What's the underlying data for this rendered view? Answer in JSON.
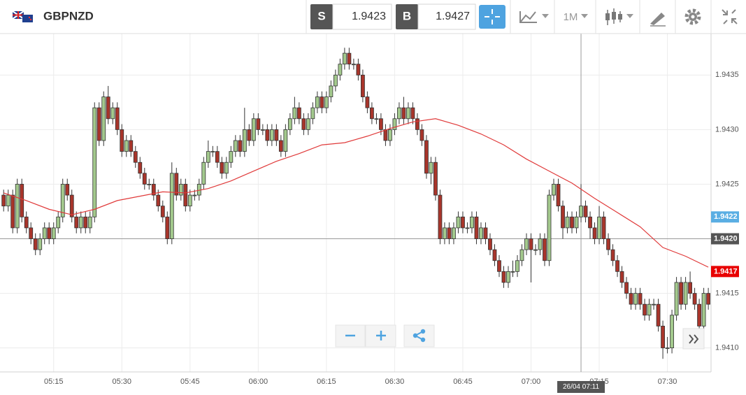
{
  "header": {
    "symbol": "GBPNZD",
    "sell_label": "S",
    "sell": "1.9423",
    "buy_label": "B",
    "buy": "1.9427",
    "timeframe": "1M"
  },
  "chart_data": {
    "type": "candlestick",
    "x": [
      304,
      305,
      306,
      307,
      308,
      309,
      310,
      311,
      312,
      313,
      314,
      315,
      316,
      317,
      318,
      319,
      320,
      321,
      322,
      323,
      324,
      325,
      326,
      327,
      328,
      329,
      330,
      331,
      332,
      333,
      334,
      335,
      336,
      337,
      338,
      339,
      340,
      341,
      342,
      343,
      344,
      345,
      346,
      347,
      348,
      349,
      350,
      351,
      352,
      353,
      354,
      355,
      356,
      357,
      358,
      359,
      360,
      361,
      362,
      363,
      364,
      365,
      366,
      367,
      368,
      369,
      370,
      371,
      372,
      373,
      374,
      375,
      376,
      377,
      378,
      379,
      380,
      381,
      382,
      383,
      384,
      385,
      386,
      387,
      388,
      389,
      390,
      391,
      392,
      393,
      394,
      395,
      396,
      397,
      398,
      399,
      400,
      401,
      402,
      403,
      404,
      405,
      406,
      407,
      408,
      409,
      410,
      411,
      412,
      413,
      414,
      415,
      416,
      417,
      418,
      419,
      420,
      421,
      422,
      423,
      424,
      425,
      426,
      427,
      428,
      429,
      430,
      431,
      432,
      433,
      434,
      435,
      436,
      437,
      438,
      439,
      440,
      441,
      442,
      443,
      444,
      445,
      446,
      447,
      448,
      449,
      450,
      451,
      452,
      453,
      454,
      455,
      456,
      457,
      458,
      459
    ],
    "ohlc": [
      [
        1.9424,
        1.94245,
        1.94225,
        1.9423
      ],
      [
        1.9423,
        1.94245,
        1.94225,
        1.9424
      ],
      [
        1.9424,
        1.94245,
        1.94205,
        1.9421
      ],
      [
        1.9421,
        1.94255,
        1.94205,
        1.9425
      ],
      [
        1.9425,
        1.94255,
        1.94215,
        1.9422
      ],
      [
        1.9422,
        1.94225,
        1.94205,
        1.9421
      ],
      [
        1.9421,
        1.94215,
        1.94195,
        1.942
      ],
      [
        1.942,
        1.94205,
        1.94185,
        1.9419
      ],
      [
        1.9419,
        1.94205,
        1.94185,
        1.942
      ],
      [
        1.942,
        1.94215,
        1.94195,
        1.9421
      ],
      [
        1.9421,
        1.94215,
        1.94195,
        1.942
      ],
      [
        1.942,
        1.94215,
        1.94195,
        1.9421
      ],
      [
        1.9421,
        1.94225,
        1.94205,
        1.9422
      ],
      [
        1.9422,
        1.94255,
        1.94215,
        1.9425
      ],
      [
        1.9425,
        1.94255,
        1.94235,
        1.9424
      ],
      [
        1.9424,
        1.94245,
        1.94215,
        1.9422
      ],
      [
        1.9422,
        1.94225,
        1.94205,
        1.9421
      ],
      [
        1.9421,
        1.94225,
        1.94205,
        1.9422
      ],
      [
        1.9422,
        1.94225,
        1.94205,
        1.9421
      ],
      [
        1.9421,
        1.94225,
        1.94205,
        1.9422
      ],
      [
        1.9422,
        1.94325,
        1.94215,
        1.9432
      ],
      [
        1.9432,
        1.94325,
        1.94285,
        1.9429
      ],
      [
        1.9429,
        1.94335,
        1.94285,
        1.9433
      ],
      [
        1.9433,
        1.9434,
        1.94305,
        1.9431
      ],
      [
        1.9431,
        1.94325,
        1.94305,
        1.9432
      ],
      [
        1.9432,
        1.94325,
        1.94295,
        1.943
      ],
      [
        1.943,
        1.94305,
        1.94275,
        1.9428
      ],
      [
        1.9428,
        1.94295,
        1.94275,
        1.9429
      ],
      [
        1.9429,
        1.94295,
        1.94275,
        1.9428
      ],
      [
        1.9428,
        1.94285,
        1.94265,
        1.9427
      ],
      [
        1.9427,
        1.94275,
        1.94255,
        1.9426
      ],
      [
        1.9426,
        1.94265,
        1.94245,
        1.9425
      ],
      [
        1.9425,
        1.94255,
        1.94245,
        1.9425
      ],
      [
        1.9425,
        1.94255,
        1.94235,
        1.9424
      ],
      [
        1.9424,
        1.94245,
        1.94225,
        1.9423
      ],
      [
        1.9423,
        1.94235,
        1.94215,
        1.9422
      ],
      [
        1.9422,
        1.94225,
        1.94195,
        1.942
      ],
      [
        1.942,
        1.9427,
        1.94195,
        1.9426
      ],
      [
        1.9426,
        1.94265,
        1.94235,
        1.9424
      ],
      [
        1.9424,
        1.94255,
        1.94235,
        1.9425
      ],
      [
        1.9425,
        1.94255,
        1.94225,
        1.9423
      ],
      [
        1.9423,
        1.94245,
        1.94225,
        1.9424
      ],
      [
        1.9424,
        1.94245,
        1.94235,
        1.9424
      ],
      [
        1.9424,
        1.94255,
        1.94235,
        1.9425
      ],
      [
        1.9425,
        1.94275,
        1.94245,
        1.9427
      ],
      [
        1.9427,
        1.9429,
        1.94265,
        1.9428
      ],
      [
        1.9428,
        1.94285,
        1.94275,
        1.9428
      ],
      [
        1.9428,
        1.94285,
        1.94265,
        1.9427
      ],
      [
        1.9427,
        1.94275,
        1.94255,
        1.9426
      ],
      [
        1.9426,
        1.94275,
        1.94255,
        1.9427
      ],
      [
        1.9427,
        1.94285,
        1.94265,
        1.9428
      ],
      [
        1.9428,
        1.94295,
        1.94275,
        1.9429
      ],
      [
        1.9429,
        1.94295,
        1.94275,
        1.9428
      ],
      [
        1.9428,
        1.9432,
        1.94275,
        1.943
      ],
      [
        1.943,
        1.94305,
        1.94285,
        1.9429
      ],
      [
        1.9429,
        1.94315,
        1.94285,
        1.9431
      ],
      [
        1.9431,
        1.94315,
        1.94295,
        1.943
      ],
      [
        1.943,
        1.94305,
        1.94295,
        1.943
      ],
      [
        1.943,
        1.94305,
        1.94285,
        1.9429
      ],
      [
        1.9429,
        1.94305,
        1.94285,
        1.943
      ],
      [
        1.943,
        1.94305,
        1.94285,
        1.9429
      ],
      [
        1.9429,
        1.94295,
        1.94275,
        1.9428
      ],
      [
        1.9428,
        1.94305,
        1.94275,
        1.943
      ],
      [
        1.943,
        1.94315,
        1.94295,
        1.9431
      ],
      [
        1.9431,
        1.9433,
        1.94305,
        1.9432
      ],
      [
        1.9432,
        1.94325,
        1.94305,
        1.9431
      ],
      [
        1.9431,
        1.94315,
        1.94295,
        1.943
      ],
      [
        1.943,
        1.94315,
        1.94295,
        1.9431
      ],
      [
        1.9431,
        1.94325,
        1.94305,
        1.9432
      ],
      [
        1.9432,
        1.94335,
        1.94315,
        1.9433
      ],
      [
        1.9433,
        1.94335,
        1.94315,
        1.9432
      ],
      [
        1.9432,
        1.94335,
        1.94315,
        1.9433
      ],
      [
        1.9433,
        1.94345,
        1.94325,
        1.9434
      ],
      [
        1.9434,
        1.94355,
        1.94335,
        1.9435
      ],
      [
        1.9435,
        1.94365,
        1.94345,
        1.9436
      ],
      [
        1.9436,
        1.94375,
        1.94355,
        1.9437
      ],
      [
        1.9437,
        1.94375,
        1.94355,
        1.9436
      ],
      [
        1.9436,
        1.94365,
        1.94355,
        1.9436
      ],
      [
        1.9436,
        1.94365,
        1.94345,
        1.9435
      ],
      [
        1.9435,
        1.94355,
        1.94325,
        1.9433
      ],
      [
        1.9433,
        1.94335,
        1.94315,
        1.9432
      ],
      [
        1.9432,
        1.94325,
        1.94305,
        1.9431
      ],
      [
        1.9431,
        1.94315,
        1.94305,
        1.9431
      ],
      [
        1.9431,
        1.94315,
        1.94295,
        1.943
      ],
      [
        1.943,
        1.94305,
        1.94285,
        1.9429
      ],
      [
        1.9429,
        1.94305,
        1.94285,
        1.943
      ],
      [
        1.943,
        1.94315,
        1.94295,
        1.9431
      ],
      [
        1.9431,
        1.94325,
        1.94305,
        1.9432
      ],
      [
        1.9432,
        1.9433,
        1.94305,
        1.9431
      ],
      [
        1.9431,
        1.94325,
        1.94305,
        1.9432
      ],
      [
        1.9432,
        1.94325,
        1.94305,
        1.9431
      ],
      [
        1.9431,
        1.94315,
        1.94295,
        1.943
      ],
      [
        1.943,
        1.94305,
        1.94285,
        1.9429
      ],
      [
        1.9429,
        1.94295,
        1.94255,
        1.9426
      ],
      [
        1.9426,
        1.94275,
        1.9425,
        1.9427
      ],
      [
        1.9427,
        1.94275,
        1.94235,
        1.9424
      ],
      [
        1.9424,
        1.94245,
        1.94195,
        1.942
      ],
      [
        1.942,
        1.94215,
        1.94195,
        1.9421
      ],
      [
        1.9421,
        1.94215,
        1.94195,
        1.942
      ],
      [
        1.942,
        1.94215,
        1.94195,
        1.9421
      ],
      [
        1.9421,
        1.94225,
        1.94205,
        1.9422
      ],
      [
        1.9422,
        1.94225,
        1.94205,
        1.9421
      ],
      [
        1.9421,
        1.94215,
        1.94205,
        1.9421
      ],
      [
        1.9421,
        1.94225,
        1.94205,
        1.9422
      ],
      [
        1.9422,
        1.94225,
        1.94195,
        1.942
      ],
      [
        1.942,
        1.94215,
        1.94195,
        1.9421
      ],
      [
        1.9421,
        1.94215,
        1.94195,
        1.942
      ],
      [
        1.942,
        1.94205,
        1.94185,
        1.9419
      ],
      [
        1.9419,
        1.94195,
        1.94175,
        1.9418
      ],
      [
        1.9418,
        1.94185,
        1.94165,
        1.9417
      ],
      [
        1.9417,
        1.94175,
        1.94155,
        1.9416
      ],
      [
        1.9416,
        1.94175,
        1.94155,
        1.9417
      ],
      [
        1.9417,
        1.9418,
        1.94165,
        1.9417
      ],
      [
        1.9417,
        1.94185,
        1.94165,
        1.9418
      ],
      [
        1.9418,
        1.94195,
        1.94175,
        1.9419
      ],
      [
        1.9419,
        1.94205,
        1.94185,
        1.942
      ],
      [
        1.942,
        1.94205,
        1.9416,
        1.9419
      ],
      [
        1.9419,
        1.94195,
        1.94185,
        1.9419
      ],
      [
        1.9419,
        1.94205,
        1.94185,
        1.942
      ],
      [
        1.942,
        1.94205,
        1.94175,
        1.9418
      ],
      [
        1.9418,
        1.94245,
        1.94175,
        1.9424
      ],
      [
        1.9424,
        1.94255,
        1.94235,
        1.9425
      ],
      [
        1.9425,
        1.94255,
        1.94225,
        1.9423
      ],
      [
        1.9423,
        1.94235,
        1.942,
        1.9421
      ],
      [
        1.9421,
        1.94225,
        1.94205,
        1.9422
      ],
      [
        1.9422,
        1.94225,
        1.94205,
        1.9421
      ],
      [
        1.9421,
        1.94225,
        1.94205,
        1.9422
      ],
      [
        1.9422,
        1.9425,
        1.94215,
        1.9423
      ],
      [
        1.9423,
        1.94235,
        1.94215,
        1.9422
      ],
      [
        1.9422,
        1.94225,
        1.942,
        1.9421
      ],
      [
        1.9421,
        1.94215,
        1.94195,
        1.942
      ],
      [
        1.942,
        1.9423,
        1.94195,
        1.9422
      ],
      [
        1.9422,
        1.94225,
        1.94195,
        1.942
      ],
      [
        1.942,
        1.94205,
        1.94185,
        1.9419
      ],
      [
        1.9419,
        1.94195,
        1.94175,
        1.9418
      ],
      [
        1.9418,
        1.94185,
        1.94165,
        1.9417
      ],
      [
        1.9417,
        1.94175,
        1.94155,
        1.9416
      ],
      [
        1.9416,
        1.94165,
        1.94145,
        1.9415
      ],
      [
        1.9415,
        1.94155,
        1.94135,
        1.9414
      ],
      [
        1.9414,
        1.94155,
        1.94135,
        1.9415
      ],
      [
        1.9415,
        1.94155,
        1.94135,
        1.9414
      ],
      [
        1.9414,
        1.94145,
        1.94125,
        1.9413
      ],
      [
        1.9413,
        1.94145,
        1.94125,
        1.9414
      ],
      [
        1.9414,
        1.94145,
        1.94135,
        1.9414
      ],
      [
        1.9414,
        1.94145,
        1.94115,
        1.9412
      ],
      [
        1.9412,
        1.94125,
        1.9409,
        1.941
      ],
      [
        1.941,
        1.9411,
        1.94095,
        1.941
      ],
      [
        1.941,
        1.94135,
        1.94095,
        1.9413
      ],
      [
        1.9413,
        1.94165,
        1.94125,
        1.9416
      ],
      [
        1.9416,
        1.94165,
        1.94135,
        1.9414
      ],
      [
        1.9414,
        1.94165,
        1.94135,
        1.9416
      ],
      [
        1.9416,
        1.9417,
        1.94145,
        1.9415
      ],
      [
        1.9415,
        1.94155,
        1.94135,
        1.9414
      ],
      [
        1.9414,
        1.94145,
        1.94115,
        1.9412
      ],
      [
        1.9412,
        1.94155,
        1.94115,
        1.9415
      ],
      [
        1.9415,
        1.94155,
        1.94135,
        1.9414
      ]
    ],
    "up_color": "#a3c98d",
    "down_color": "#a8352b",
    "xlim": [
      303.2,
      459.6
    ],
    "xticks": [
      {
        "value": 315,
        "label": "05:15"
      },
      {
        "value": 330,
        "label": "05:30"
      },
      {
        "value": 345,
        "label": "05:45"
      },
      {
        "value": 360,
        "label": "06:00"
      },
      {
        "value": 375,
        "label": "06:15"
      },
      {
        "value": 390,
        "label": "06:30"
      },
      {
        "value": 405,
        "label": "06:45"
      },
      {
        "value": 420,
        "label": "07:00"
      },
      {
        "value": 435,
        "label": "07:15"
      },
      {
        "value": 450,
        "label": "07:30"
      }
    ],
    "ylim": [
      1.94078,
      1.94388
    ],
    "yticks": [
      {
        "value": 1.941,
        "label": "1.9410"
      },
      1.9415,
      {
        "value": 1.942,
        "label": "1.9420"
      },
      1.9425,
      {
        "value": 1.943,
        "label": "1.9430"
      },
      1.9435
    ],
    "grid": true,
    "moving_average": {
      "color": "#e03a3a",
      "x": [
        304,
        309,
        314,
        319,
        324,
        329,
        334,
        339,
        344,
        349,
        354,
        359,
        364,
        369,
        374,
        379,
        384,
        389,
        394,
        399,
        404,
        409,
        414,
        419,
        424,
        429,
        434,
        439,
        444,
        449,
        454,
        459
      ],
      "values": [
        1.94242,
        1.94235,
        1.94227,
        1.94222,
        1.94227,
        1.94235,
        1.94239,
        1.94243,
        1.94242,
        1.94246,
        1.94253,
        1.94262,
        1.94271,
        1.94278,
        1.94286,
        1.94288,
        1.94294,
        1.94301,
        1.94307,
        1.9431,
        1.94304,
        1.94296,
        1.94286,
        1.94273,
        1.94262,
        1.94251,
        1.94237,
        1.94224,
        1.94211,
        1.94192,
        1.94184,
        1.94174
      ]
    },
    "price_markers": [
      {
        "value": 1.9422,
        "color": "#5aaee3"
      },
      {
        "value": 1.9417,
        "color": "#e80000"
      }
    ],
    "crosshair": {
      "x": 431,
      "x_label": "26/04 07:11",
      "y": {
        "value": 1.942,
        "label": "1.9420"
      }
    }
  }
}
